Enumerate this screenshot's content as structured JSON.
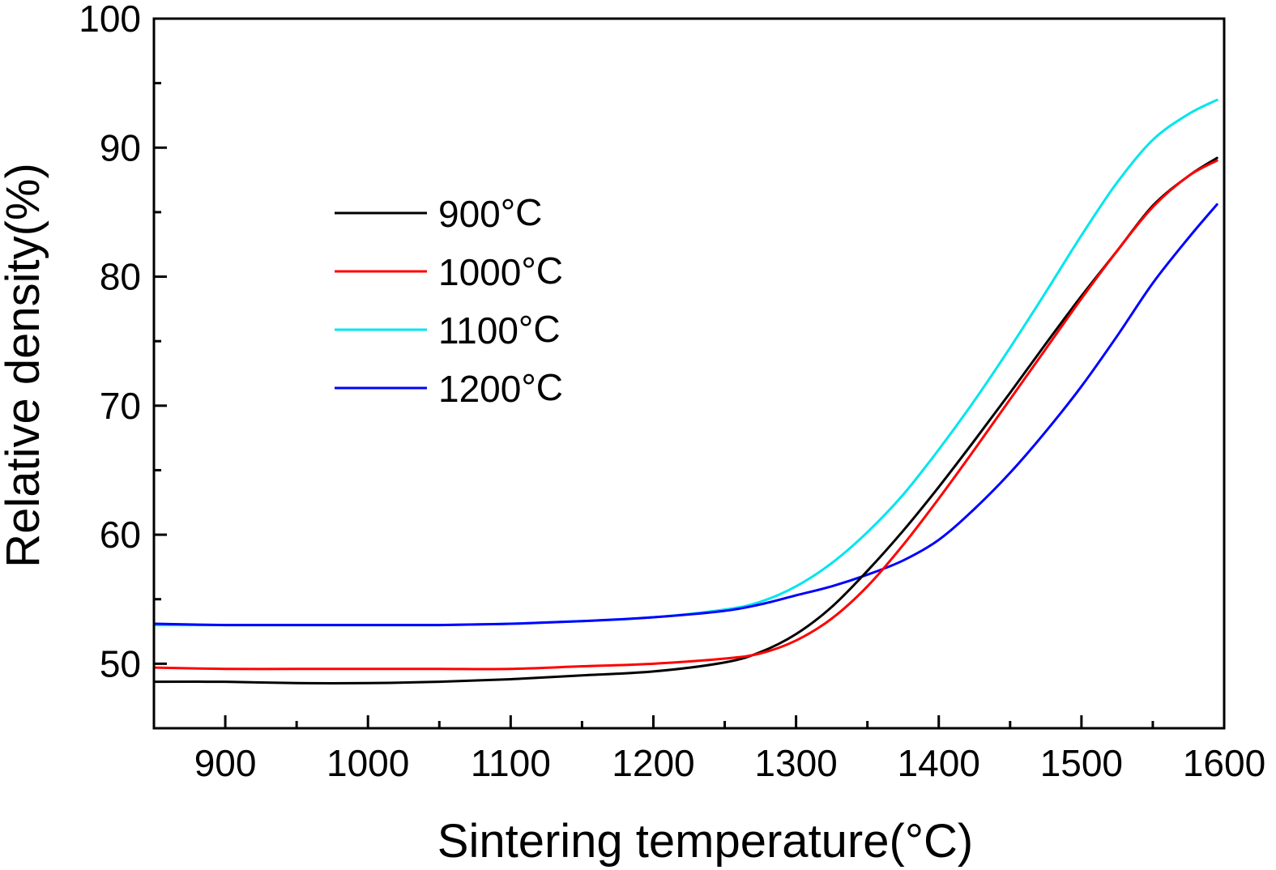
{
  "chart_data": {
    "type": "line",
    "title": "",
    "xlabel_main": "Sintering temperature(",
    "xlabel_unit": "°C)",
    "ylabel": "Relative density(%)",
    "xlim": [
      850,
      1600
    ],
    "ylim": [
      45,
      100
    ],
    "xticks": [
      900,
      1000,
      1100,
      1200,
      1300,
      1400,
      1500,
      1600
    ],
    "yticks": [
      50,
      60,
      70,
      80,
      90,
      100
    ],
    "grid": false,
    "legend_position": "upper-left",
    "series": [
      {
        "name": "900",
        "unit": "°C",
        "color": "#000000",
        "x": [
          850,
          900,
          950,
          1000,
          1050,
          1100,
          1150,
          1200,
          1250,
          1275,
          1300,
          1325,
          1350,
          1375,
          1400,
          1425,
          1450,
          1475,
          1500,
          1525,
          1550,
          1575,
          1595
        ],
        "y": [
          48.6,
          48.6,
          48.5,
          48.5,
          48.6,
          48.8,
          49.1,
          49.4,
          50.1,
          50.9,
          52.3,
          54.4,
          57.2,
          60.3,
          63.7,
          67.3,
          71.0,
          74.8,
          78.5,
          82.0,
          85.5,
          87.8,
          89.2
        ]
      },
      {
        "name": "1000",
        "unit": "°C",
        "color": "#ff0000",
        "x": [
          850,
          900,
          950,
          1000,
          1050,
          1100,
          1150,
          1200,
          1250,
          1275,
          1300,
          1325,
          1350,
          1375,
          1400,
          1425,
          1450,
          1475,
          1500,
          1525,
          1550,
          1575,
          1595
        ],
        "y": [
          49.7,
          49.6,
          49.6,
          49.6,
          49.6,
          49.6,
          49.8,
          50.0,
          50.4,
          50.8,
          51.8,
          53.5,
          56.0,
          59.2,
          62.8,
          66.6,
          70.5,
          74.4,
          78.3,
          82.0,
          85.4,
          87.8,
          89.0
        ]
      },
      {
        "name": "1100",
        "unit": "°C",
        "color": "#00e5ee",
        "x": [
          850,
          900,
          950,
          1000,
          1050,
          1100,
          1150,
          1200,
          1250,
          1275,
          1300,
          1325,
          1350,
          1375,
          1400,
          1425,
          1450,
          1475,
          1500,
          1525,
          1550,
          1575,
          1595
        ],
        "y": [
          53.0,
          53.0,
          53.0,
          53.0,
          53.0,
          53.1,
          53.3,
          53.6,
          54.2,
          54.8,
          56.0,
          57.8,
          60.2,
          63.1,
          66.6,
          70.4,
          74.5,
          78.8,
          83.2,
          87.3,
          90.6,
          92.6,
          93.7
        ]
      },
      {
        "name": "1200",
        "unit": "°C",
        "color": "#0000ff",
        "x": [
          850,
          900,
          950,
          1000,
          1050,
          1100,
          1150,
          1200,
          1250,
          1275,
          1300,
          1325,
          1350,
          1375,
          1400,
          1425,
          1450,
          1475,
          1500,
          1525,
          1550,
          1575,
          1595
        ],
        "y": [
          53.1,
          53.0,
          53.0,
          53.0,
          53.0,
          53.1,
          53.3,
          53.6,
          54.1,
          54.6,
          55.3,
          56.0,
          56.9,
          58.0,
          59.6,
          62.0,
          64.8,
          68.0,
          71.5,
          75.4,
          79.5,
          83.0,
          85.6
        ]
      }
    ]
  }
}
